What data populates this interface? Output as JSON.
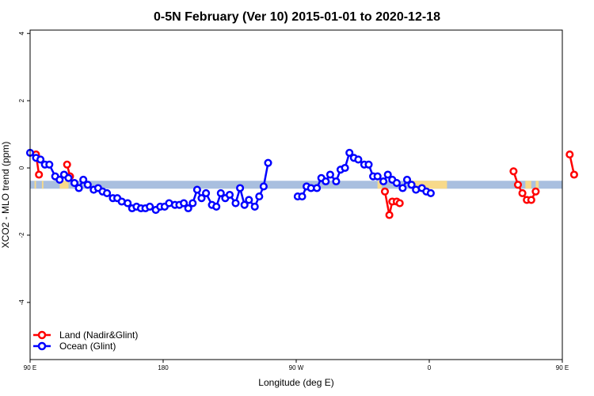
{
  "chart_data": {
    "type": "line",
    "title": "0-5N February (Ver 10)   2015-01-01 to 2020-12-18",
    "xlabel": "Longitude (deg E)",
    "ylabel": "XCO2 - MLO trend (ppm)",
    "xlim": [
      90,
      450
    ],
    "ylim": [
      -5.7,
      4.1
    ],
    "x_tick_values": [
      90,
      180,
      270,
      360,
      450
    ],
    "x_tick_labels": [
      "90 E",
      "180",
      "90 W",
      "0",
      "90 E",
      "180"
    ],
    "x_tick_positions": [
      90,
      180,
      270,
      360,
      450,
      540
    ],
    "y_ticks": [
      4,
      2,
      0,
      -2,
      -4
    ],
    "grid": false,
    "legend_position": "bottom-left",
    "band": {
      "y": -0.5,
      "base_color": "#a9bfdf",
      "land_color": "#f7d98a",
      "land_segments": [
        [
          93,
          94
        ],
        [
          98,
          99
        ],
        [
          110,
          116
        ],
        [
          325,
          328
        ],
        [
          347,
          372
        ],
        [
          425,
          429
        ],
        [
          432,
          434
        ]
      ]
    },
    "series": [
      {
        "name": "Land (Nadir&Glint)",
        "color": "#ff0000",
        "segments": [
          [
            [
              94,
              0.4
            ],
            [
              96,
              -0.2
            ]
          ],
          [
            [
              115,
              0.1
            ],
            [
              117,
              -0.25
            ]
          ],
          [
            [
              330,
              -0.7
            ],
            [
              333,
              -1.4
            ],
            [
              335,
              -1.0
            ],
            [
              338,
              -1.0
            ],
            [
              340,
              -1.05
            ]
          ],
          [
            [
              417,
              -0.1
            ],
            [
              420,
              -0.5
            ],
            [
              423,
              -0.75
            ],
            [
              426,
              -0.95
            ],
            [
              429,
              -0.95
            ],
            [
              432,
              -0.7
            ]
          ],
          [
            [
              455,
              0.4
            ],
            [
              458,
              -0.2
            ]
          ],
          [
            [
              475,
              0.1
            ],
            [
              477,
              -0.25
            ]
          ]
        ]
      },
      {
        "name": "Ocean (Glint)",
        "color": "#0000ff",
        "segments": [
          [
            [
              90,
              0.45
            ],
            [
              94,
              0.3
            ],
            [
              97,
              0.25
            ],
            [
              100,
              0.1
            ],
            [
              103,
              0.1
            ],
            [
              107,
              -0.25
            ],
            [
              110,
              -0.35
            ],
            [
              113,
              -0.2
            ],
            [
              116,
              -0.3
            ],
            [
              120,
              -0.45
            ],
            [
              123,
              -0.6
            ],
            [
              126,
              -0.35
            ],
            [
              129,
              -0.5
            ],
            [
              133,
              -0.65
            ],
            [
              136,
              -0.6
            ],
            [
              139,
              -0.7
            ],
            [
              142,
              -0.75
            ],
            [
              146,
              -0.9
            ],
            [
              149,
              -0.9
            ],
            [
              152,
              -1.0
            ],
            [
              156,
              -1.05
            ],
            [
              159,
              -1.2
            ],
            [
              162,
              -1.15
            ],
            [
              165,
              -1.2
            ],
            [
              168,
              -1.2
            ],
            [
              171,
              -1.15
            ],
            [
              175,
              -1.25
            ],
            [
              178,
              -1.15
            ],
            [
              181,
              -1.15
            ],
            [
              184,
              -1.05
            ],
            [
              188,
              -1.1
            ],
            [
              191,
              -1.1
            ],
            [
              194,
              -1.05
            ],
            [
              197,
              -1.2
            ],
            [
              200,
              -1.05
            ],
            [
              203,
              -0.65
            ],
            [
              206,
              -0.9
            ],
            [
              209,
              -0.75
            ],
            [
              213,
              -1.1
            ],
            [
              216,
              -1.15
            ],
            [
              219,
              -0.75
            ],
            [
              222,
              -0.9
            ],
            [
              225,
              -0.8
            ],
            [
              229,
              -1.05
            ],
            [
              232,
              -0.6
            ],
            [
              235,
              -1.1
            ],
            [
              238,
              -0.95
            ],
            [
              242,
              -1.15
            ],
            [
              245,
              -0.85
            ],
            [
              248,
              -0.55
            ],
            [
              251,
              0.15
            ]
          ],
          [
            [
              271,
              -0.85
            ],
            [
              274,
              -0.85
            ],
            [
              277,
              -0.55
            ],
            [
              280,
              -0.6
            ],
            [
              284,
              -0.6
            ],
            [
              287,
              -0.3
            ],
            [
              290,
              -0.4
            ],
            [
              293,
              -0.2
            ],
            [
              297,
              -0.4
            ],
            [
              300,
              -0.05
            ],
            [
              303,
              0.0
            ],
            [
              306,
              0.45
            ],
            [
              309,
              0.3
            ],
            [
              312,
              0.25
            ],
            [
              316,
              0.1
            ],
            [
              319,
              0.1
            ],
            [
              322,
              -0.25
            ],
            [
              325,
              -0.25
            ],
            [
              329,
              -0.4
            ],
            [
              332,
              -0.2
            ],
            [
              335,
              -0.35
            ],
            [
              338,
              -0.45
            ],
            [
              342,
              -0.6
            ],
            [
              345,
              -0.35
            ],
            [
              348,
              -0.5
            ],
            [
              351,
              -0.65
            ],
            [
              355,
              -0.6
            ],
            [
              358,
              -0.7
            ],
            [
              361,
              -0.75
            ]
          ]
        ]
      }
    ]
  },
  "legend": {
    "items": [
      {
        "label": "Land (Nadir&Glint)",
        "color": "#ff0000"
      },
      {
        "label": "Ocean (Glint)",
        "color": "#0000ff"
      }
    ]
  }
}
